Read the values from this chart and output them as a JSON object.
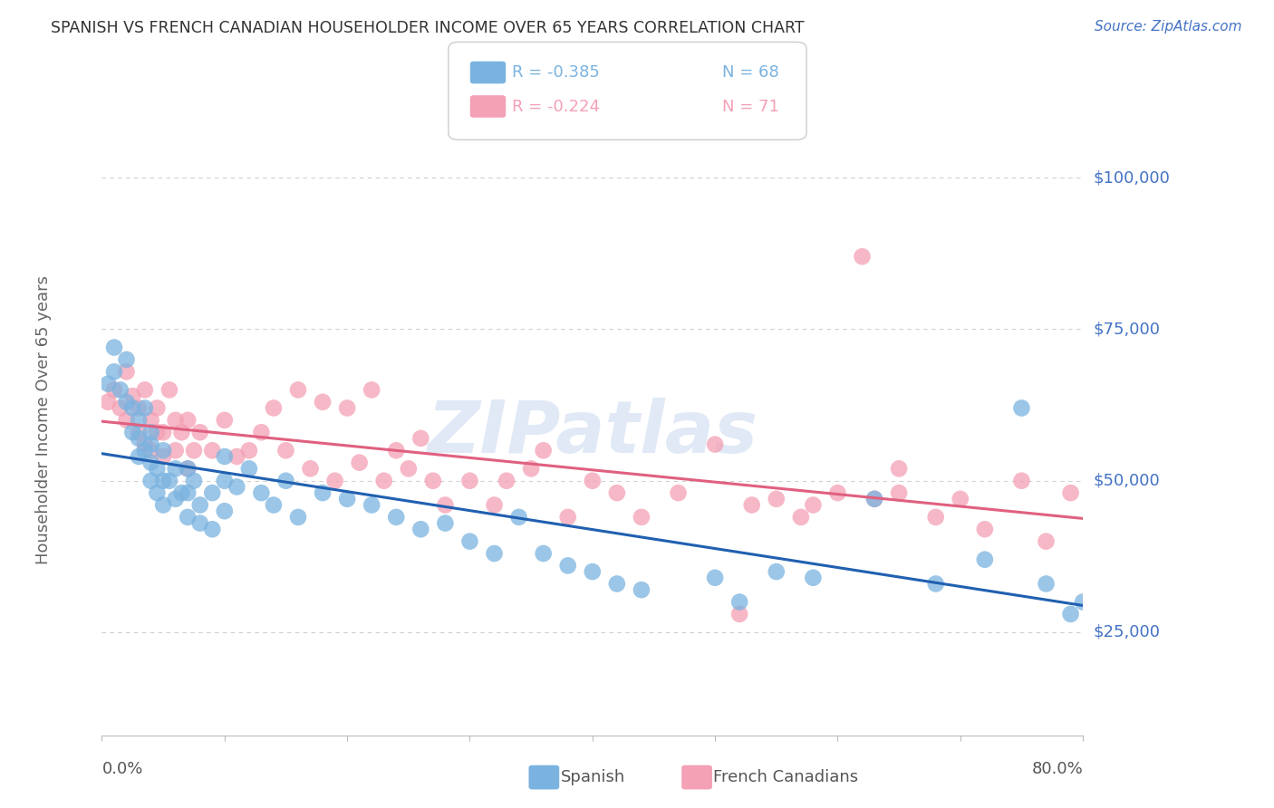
{
  "title": "SPANISH VS FRENCH CANADIAN HOUSEHOLDER INCOME OVER 65 YEARS CORRELATION CHART",
  "source": "Source: ZipAtlas.com",
  "ylabel": "Householder Income Over 65 years",
  "watermark": "ZIPatlas",
  "legend_entries": [
    {
      "label_r": "R = -0.385",
      "label_n": "N = 68",
      "color": "#7ab3e0"
    },
    {
      "label_r": "R = -0.224",
      "label_n": "N = 71",
      "color": "#f4a0b5"
    }
  ],
  "legend_bottom": [
    "Spanish",
    "French Canadians"
  ],
  "legend_bottom_colors": [
    "#7ab3e0",
    "#f4a0b5"
  ],
  "ytick_labels": [
    "$25,000",
    "$50,000",
    "$75,000",
    "$100,000"
  ],
  "ytick_values": [
    25000,
    50000,
    75000,
    100000
  ],
  "ylim": [
    8000,
    112000
  ],
  "xlim": [
    0.0,
    0.8
  ],
  "background_color": "#ffffff",
  "grid_color": "#d0d0d0",
  "title_color": "#444444",
  "ytick_color": "#4472c4",
  "spanish_color": "#7ab3e0",
  "french_color": "#f4a0b5",
  "spanish_line_color": "#2060b0",
  "french_line_color": "#e06080",
  "spanish_scatter_x": [
    0.005,
    0.01,
    0.01,
    0.015,
    0.02,
    0.02,
    0.025,
    0.025,
    0.03,
    0.03,
    0.03,
    0.035,
    0.035,
    0.04,
    0.04,
    0.04,
    0.04,
    0.045,
    0.045,
    0.05,
    0.05,
    0.05,
    0.055,
    0.06,
    0.06,
    0.065,
    0.07,
    0.07,
    0.07,
    0.075,
    0.08,
    0.08,
    0.09,
    0.09,
    0.1,
    0.1,
    0.1,
    0.11,
    0.12,
    0.13,
    0.14,
    0.15,
    0.16,
    0.18,
    0.2,
    0.22,
    0.24,
    0.26,
    0.28,
    0.3,
    0.32,
    0.34,
    0.36,
    0.38,
    0.4,
    0.42,
    0.44,
    0.5,
    0.52,
    0.55,
    0.58,
    0.63,
    0.68,
    0.72,
    0.75,
    0.77,
    0.79,
    0.8
  ],
  "spanish_scatter_y": [
    66000,
    72000,
    68000,
    65000,
    70000,
    63000,
    62000,
    58000,
    60000,
    57000,
    54000,
    62000,
    55000,
    58000,
    53000,
    50000,
    56000,
    52000,
    48000,
    55000,
    50000,
    46000,
    50000,
    52000,
    47000,
    48000,
    52000,
    48000,
    44000,
    50000,
    46000,
    43000,
    48000,
    42000,
    54000,
    50000,
    45000,
    49000,
    52000,
    48000,
    46000,
    50000,
    44000,
    48000,
    47000,
    46000,
    44000,
    42000,
    43000,
    40000,
    38000,
    44000,
    38000,
    36000,
    35000,
    33000,
    32000,
    34000,
    30000,
    35000,
    34000,
    47000,
    33000,
    37000,
    62000,
    33000,
    28000,
    30000
  ],
  "french_scatter_x": [
    0.005,
    0.01,
    0.015,
    0.02,
    0.02,
    0.025,
    0.03,
    0.03,
    0.035,
    0.035,
    0.04,
    0.04,
    0.045,
    0.045,
    0.05,
    0.05,
    0.055,
    0.06,
    0.06,
    0.065,
    0.07,
    0.07,
    0.075,
    0.08,
    0.09,
    0.1,
    0.11,
    0.12,
    0.13,
    0.14,
    0.15,
    0.16,
    0.17,
    0.18,
    0.19,
    0.2,
    0.21,
    0.22,
    0.23,
    0.24,
    0.25,
    0.26,
    0.27,
    0.28,
    0.3,
    0.32,
    0.33,
    0.35,
    0.36,
    0.38,
    0.4,
    0.42,
    0.44,
    0.5,
    0.52,
    0.55,
    0.58,
    0.6,
    0.63,
    0.65,
    0.68,
    0.7,
    0.72,
    0.75,
    0.77,
    0.79,
    0.62,
    0.47,
    0.53,
    0.57,
    0.65
  ],
  "french_scatter_y": [
    63000,
    65000,
    62000,
    68000,
    60000,
    64000,
    62000,
    58000,
    65000,
    56000,
    60000,
    55000,
    62000,
    58000,
    58000,
    54000,
    65000,
    60000,
    55000,
    58000,
    60000,
    52000,
    55000,
    58000,
    55000,
    60000,
    54000,
    55000,
    58000,
    62000,
    55000,
    65000,
    52000,
    63000,
    50000,
    62000,
    53000,
    65000,
    50000,
    55000,
    52000,
    57000,
    50000,
    46000,
    50000,
    46000,
    50000,
    52000,
    55000,
    44000,
    50000,
    48000,
    44000,
    56000,
    28000,
    47000,
    46000,
    48000,
    47000,
    52000,
    44000,
    47000,
    42000,
    50000,
    40000,
    48000,
    87000,
    48000,
    46000,
    44000,
    48000
  ]
}
